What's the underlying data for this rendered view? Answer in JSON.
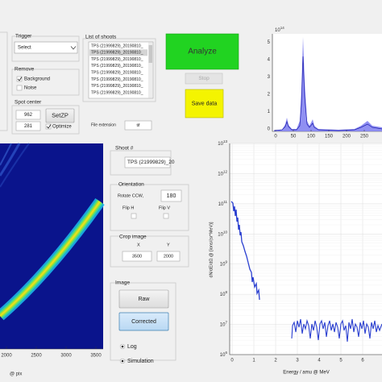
{
  "trigger": {
    "title": "Trigger",
    "select": "Select"
  },
  "shoots": {
    "title": "List of shoots",
    "items": [
      "TPS (21999829)_20190810_",
      "TPS (21999829)_20190810_",
      "TPS (21999829)_20190810_",
      "TPS (21999829)_20190810_",
      "TPS (21999829)_20190810_",
      "TPS (21999829)_20190810_",
      "TPS (21999829)_20190810_",
      "TPS (21999829)_20190810_"
    ]
  },
  "buttons": {
    "analyze": "Analyze",
    "stop": "Stop",
    "save": "Save data"
  },
  "remove": {
    "title": "Remove",
    "background": "Background",
    "noise": "Noise"
  },
  "spot_center": {
    "title": "Spot center",
    "x": "962",
    "y": "281",
    "set_zp": "SetZP",
    "optimize": "Optimize"
  },
  "file_extension": {
    "label": "File extension",
    "value": "tif"
  },
  "shoot": {
    "title": "Shoot #",
    "value": "TPS (21999829)_20"
  },
  "orientation": {
    "title": "Orientation",
    "rotate_label": "Rotate CCW,",
    "rotate_value": "180",
    "flip_h": "Flip H",
    "flip_v": "Flip V"
  },
  "crop": {
    "title": "Crop image",
    "x_label": "X",
    "y_label": "Y",
    "x": "3500",
    "y": "2000"
  },
  "image": {
    "title": "Image",
    "raw": "Raw",
    "corrected": "Corrected",
    "log": "Log",
    "simulation": "Simulation"
  },
  "top_plot": {
    "exponent": {
      "base": "10",
      "exp": "14"
    },
    "xticks": [
      "0",
      "50",
      "100",
      "150",
      "200",
      "250"
    ],
    "yticks": [
      "0",
      "1",
      "2",
      "3",
      "4",
      "5"
    ]
  },
  "left_image": {
    "xticks": [
      "2000",
      "2500",
      "3000",
      "3500"
    ],
    "xlabel": "@ pix"
  },
  "bottom_plot": {
    "ylabel": "dN/dE/dΩ @ [ions/(sr*MeV)]",
    "xlabel": "Energy / amu @ MeV",
    "xticks": [
      "0",
      "1",
      "2",
      "3",
      "4",
      "5",
      "6"
    ],
    "yticks": [
      {
        "base": "10",
        "exp": "13"
      },
      {
        "base": "10",
        "exp": "12"
      },
      {
        "base": "10",
        "exp": "11"
      },
      {
        "base": "10",
        "exp": "10"
      },
      {
        "base": "10",
        "exp": "9"
      },
      {
        "base": "10",
        "exp": "8"
      },
      {
        "base": "10",
        "exp": "7"
      },
      {
        "base": "10",
        "exp": "6"
      }
    ]
  }
}
